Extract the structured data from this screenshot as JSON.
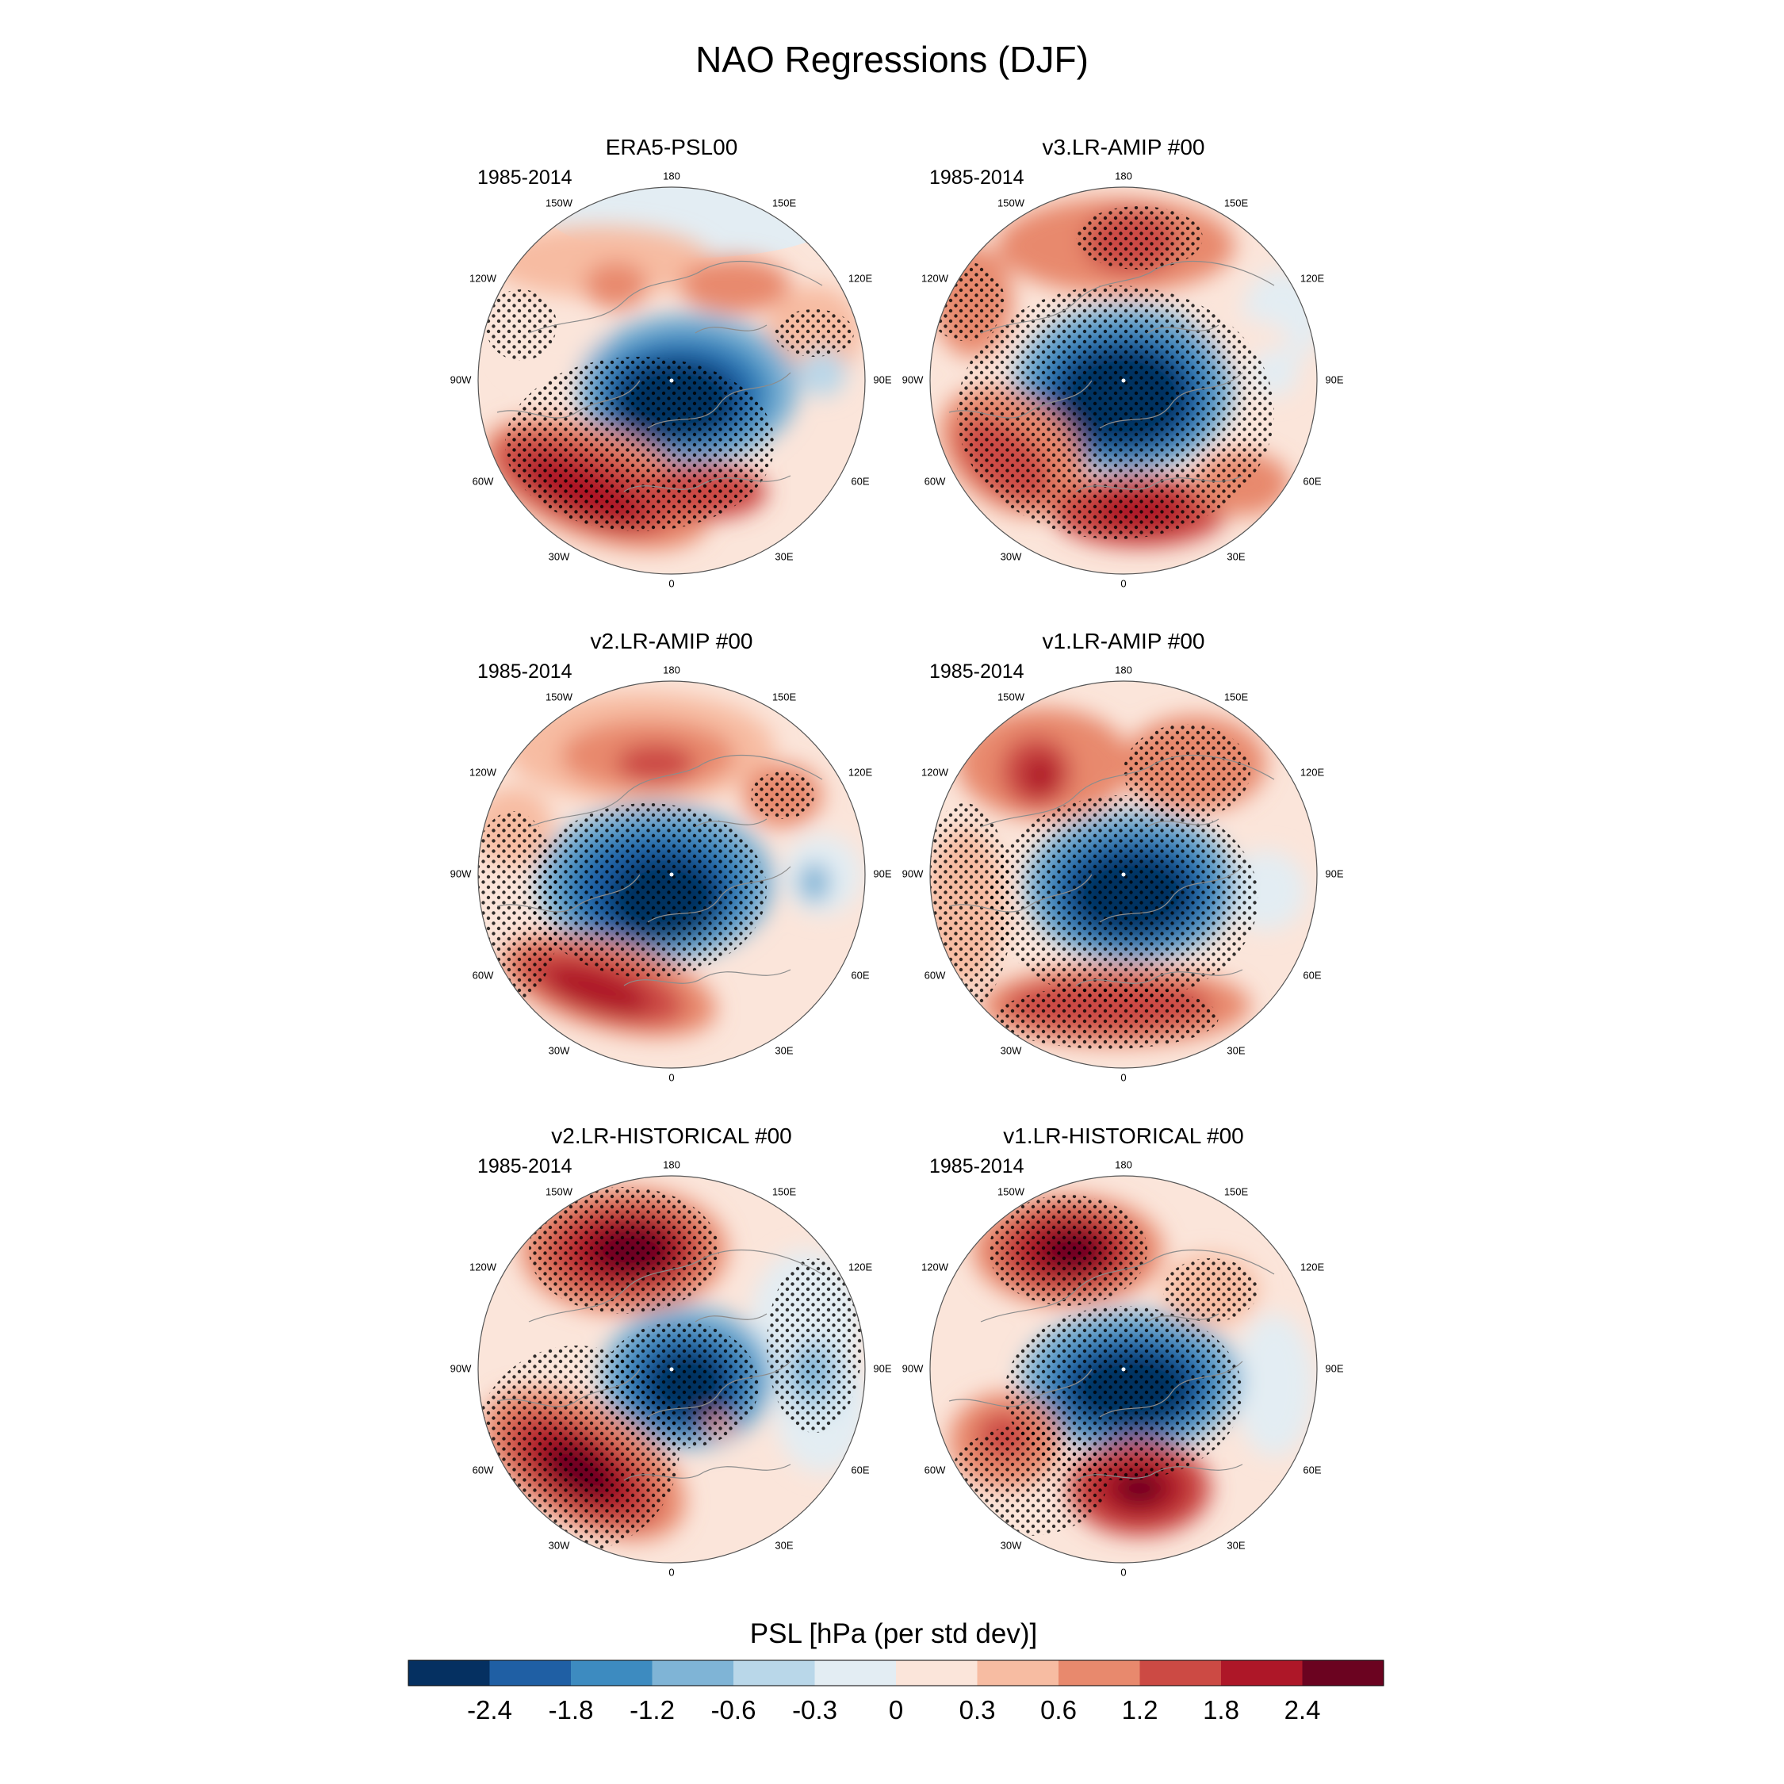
{
  "figure": {
    "title": "NAO Regressions (DJF)",
    "colorbar_label": "PSL [hPa (per std dev)]",
    "levels": [
      "-2.4",
      "-1.8",
      "-1.2",
      "-0.6",
      "-0.3",
      "0",
      "0.3",
      "0.6",
      "1.2",
      "1.8",
      "2.4"
    ],
    "colors": [
      "#053061",
      "#1f5fa4",
      "#3d8bc0",
      "#7fb4d6",
      "#b9d7e9",
      "#e3edf3",
      "#fbe5da",
      "#f7bca2",
      "#e8896d",
      "#cc4a44",
      "#ae1728",
      "#6b0320"
    ],
    "lon_labels": [
      "180",
      "150E",
      "120E",
      "90E",
      "60E",
      "30E",
      "0",
      "30W",
      "60W",
      "90W",
      "120W",
      "150W"
    ]
  },
  "panels": [
    {
      "title": "ERA5-PSL00",
      "period": "1985-2014"
    },
    {
      "title": "v3.LR-AMIP  #00",
      "period": "1985-2014"
    },
    {
      "title": "v2.LR-AMIP  #00",
      "period": "1985-2014"
    },
    {
      "title": "v1.LR-AMIP  #00",
      "period": "1985-2014"
    },
    {
      "title": "v2.LR-HISTORICAL  #00",
      "period": "1985-2014"
    },
    {
      "title": "v1.LR-HISTORICAL  #00",
      "period": "1985-2014"
    }
  ]
}
